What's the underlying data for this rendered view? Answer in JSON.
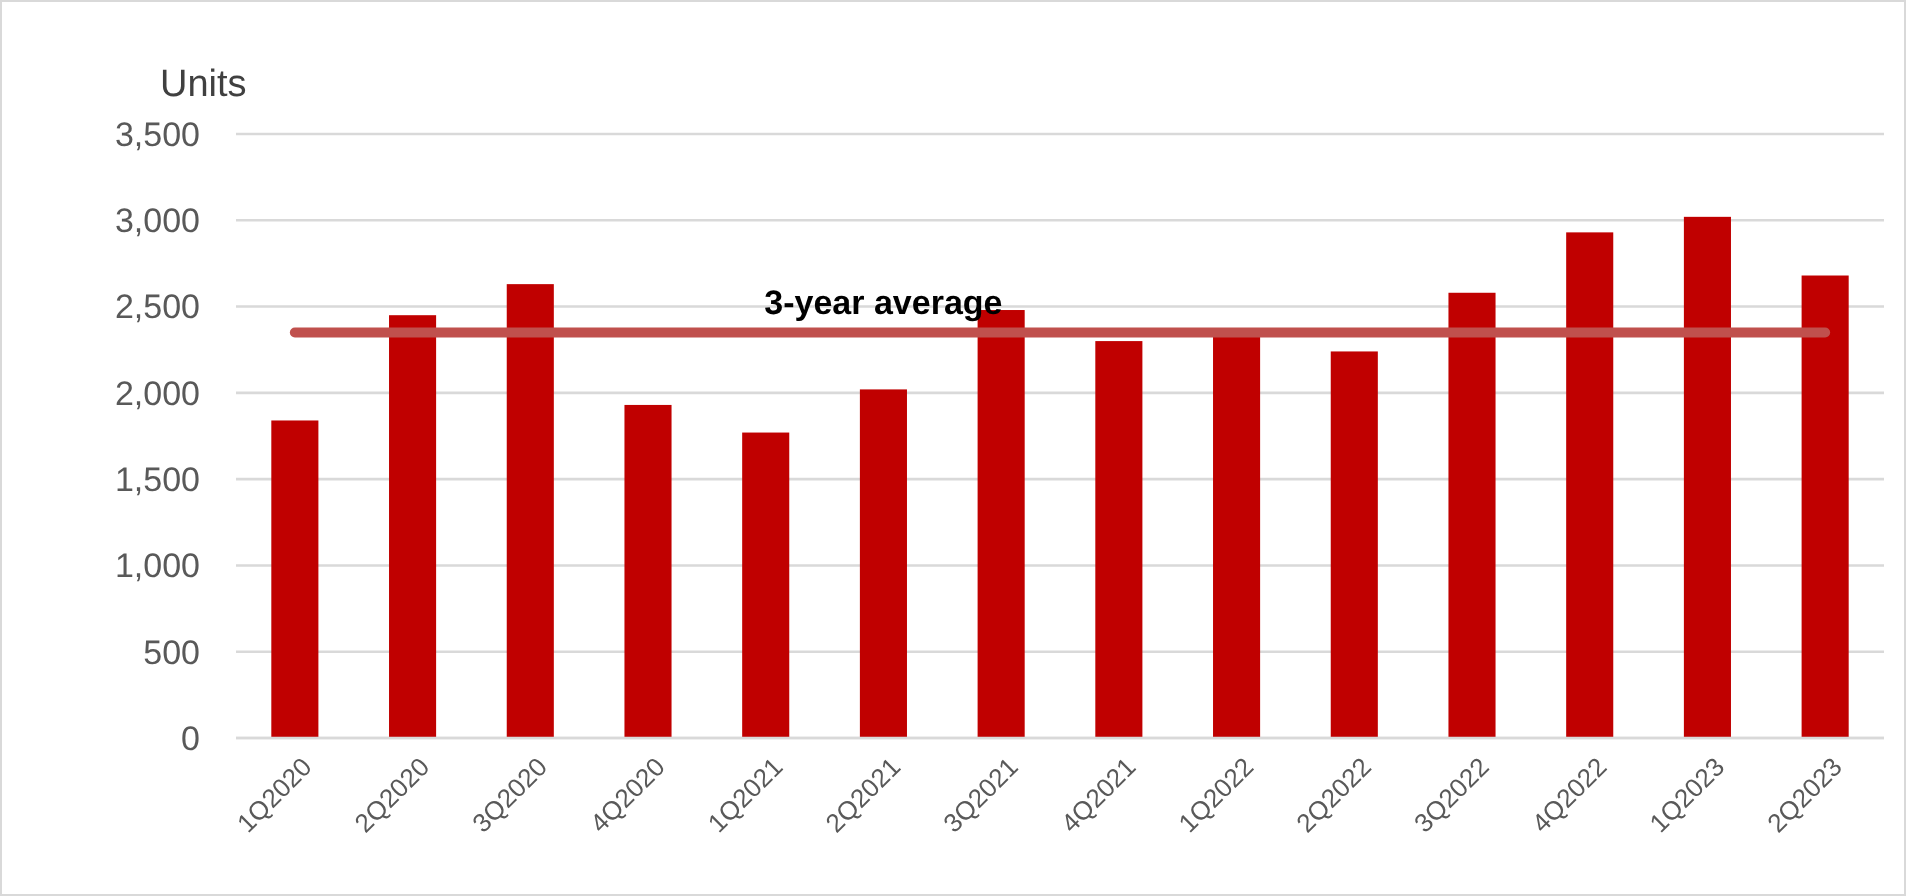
{
  "chart_data": {
    "type": "bar",
    "ylabel": "Units",
    "categories": [
      "1Q2020",
      "2Q2020",
      "3Q2020",
      "4Q2020",
      "1Q2021",
      "2Q2021",
      "3Q2021",
      "4Q2021",
      "1Q2022",
      "2Q2022",
      "3Q2022",
      "4Q2022",
      "1Q2023",
      "2Q2023"
    ],
    "values": [
      1840,
      2450,
      2630,
      1930,
      1770,
      2020,
      2480,
      2300,
      2330,
      2240,
      2580,
      2930,
      3020,
      2680
    ],
    "color": "#c00000",
    "ylim": [
      0,
      3500
    ],
    "yticks": [
      {
        "value": 0,
        "label": "0"
      },
      {
        "value": 500,
        "label": "500"
      },
      {
        "value": 1000,
        "label": "1,000"
      },
      {
        "value": 1500,
        "label": "1,500"
      },
      {
        "value": 2000,
        "label": "2,000"
      },
      {
        "value": 2500,
        "label": "2,500"
      },
      {
        "value": 3000,
        "label": "3,000"
      },
      {
        "value": 3500,
        "label": "3,500"
      }
    ],
    "grid": "y",
    "ref_lines": [
      {
        "axis": "y",
        "value": 2350,
        "label": "3-year average",
        "color": "#c0504d"
      }
    ]
  }
}
